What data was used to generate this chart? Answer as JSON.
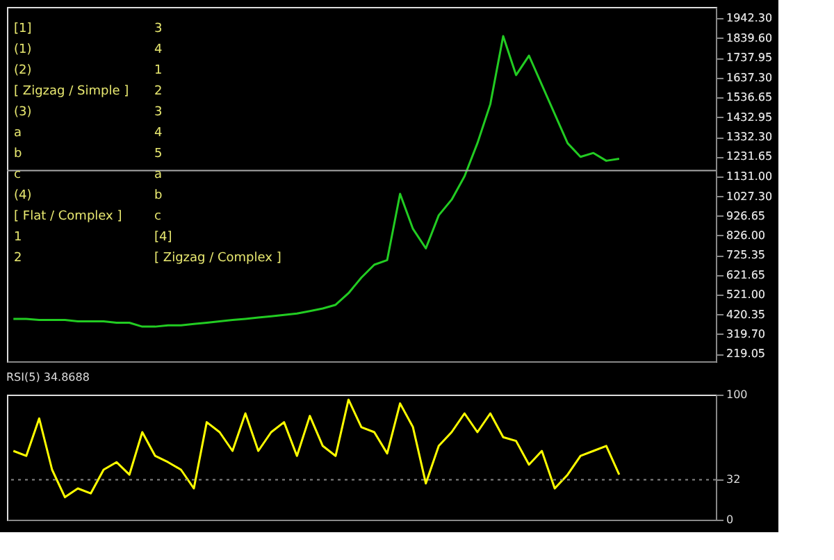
{
  "chart_data": [
    {
      "type": "line",
      "categories": [
        null,
        null,
        null,
        null,
        null,
        null,
        null,
        null,
        null,
        null,
        null,
        null,
        null,
        null,
        null,
        null,
        null,
        null,
        null,
        null,
        null,
        null,
        null,
        null,
        null,
        null,
        null,
        null,
        null,
        null,
        null,
        null,
        null,
        null,
        null,
        null,
        null,
        null,
        null,
        null,
        null,
        null,
        null,
        null,
        null,
        null,
        null,
        null,
        null,
        null,
        null,
        null,
        null,
        null,
        null
      ],
      "series": [
        {
          "color": "#22cc22",
          "values": [
            398,
            398,
            392,
            392,
            392,
            385,
            385,
            385,
            378,
            378,
            358,
            358,
            365,
            365,
            372,
            378,
            385,
            392,
            398,
            405,
            411,
            418,
            425,
            438,
            451,
            470,
            530,
            610,
            676,
            700,
            1040,
            860,
            760,
            930,
            1010,
            1130,
            1300,
            1500,
            1850,
            1650,
            1750,
            1600,
            1450,
            1300,
            1230,
            1250,
            1210,
            1220,
            null,
            null,
            null,
            null,
            null,
            null,
            null
          ]
        }
      ],
      "ylim": [
        180,
        2000
      ],
      "yticks": [
        {
          "value": 219.05,
          "label": "219.05"
        },
        {
          "value": 319.7,
          "label": "319.70"
        },
        {
          "value": 420.35,
          "label": "420.35"
        },
        {
          "value": 521,
          "label": "521.00"
        },
        {
          "value": 621.65,
          "label": "621.65"
        },
        {
          "value": 725.35,
          "label": "725.35"
        },
        {
          "value": 826,
          "label": "826.00"
        },
        {
          "value": 926.65,
          "label": "926.65"
        },
        {
          "value": 1027.3,
          "label": "1027.30"
        },
        {
          "value": 1131,
          "label": "1131.00"
        },
        {
          "value": 1231.65,
          "label": "1231.65"
        },
        {
          "value": 1332.3,
          "label": "1332.30"
        },
        {
          "value": 1432.95,
          "label": "1432.95"
        },
        {
          "value": 1536.65,
          "label": "1536.65"
        },
        {
          "value": 1637.3,
          "label": "1637.30"
        },
        {
          "value": 1737.95,
          "label": "1737.95"
        },
        {
          "value": 1839.6,
          "label": "1839.60"
        },
        {
          "value": 1942.3,
          "label": "1942.30"
        }
      ],
      "tick_labels": "y",
      "grid": false,
      "ref_lines": [
        {
          "axis": "y",
          "value": 1160,
          "color": "#aaaaaa"
        }
      ],
      "annotations": [
        "[1]",
        "(1)",
        "(2)",
        "[ Zigzag / Simple ]",
        "(3)",
        "a",
        "b",
        "c",
        "(4)",
        "[ Flat / Complex ]",
        "1",
        "2",
        "3",
        "4",
        "1",
        "2",
        "3",
        "4",
        "5",
        "a",
        "b",
        "c",
        "[4]",
        "[ Zigzag / Complex ]"
      ]
    },
    {
      "type": "line",
      "title": "RSI(5) 34.8688",
      "categories": [
        null,
        null,
        null,
        null,
        null,
        null,
        null,
        null,
        null,
        null,
        null,
        null,
        null,
        null,
        null,
        null,
        null,
        null,
        null,
        null,
        null,
        null,
        null,
        null,
        null,
        null,
        null,
        null,
        null,
        null,
        null,
        null,
        null,
        null,
        null,
        null,
        null,
        null,
        null,
        null,
        null,
        null,
        null,
        null,
        null,
        null,
        null,
        null,
        null,
        null,
        null,
        null,
        null,
        null,
        null
      ],
      "series": [
        {
          "color": "#ffff00",
          "values": [
            55,
            51,
            81,
            40,
            18,
            25,
            21,
            40,
            46,
            36,
            70,
            51,
            46,
            40,
            25,
            78,
            70,
            55,
            85,
            55,
            70,
            78,
            51,
            83,
            59,
            51,
            96,
            74,
            70,
            53,
            93,
            74,
            29,
            59,
            70,
            85,
            70,
            85,
            66,
            63,
            44,
            55,
            25,
            36,
            51,
            55,
            59,
            36,
            null,
            null,
            null,
            null,
            null,
            null,
            null
          ]
        }
      ],
      "ylim": [
        0,
        100
      ],
      "yticks": [
        0,
        32,
        100
      ],
      "tick_labels": "y",
      "ref_lines": [
        {
          "axis": "y",
          "value": 32,
          "color": "#888888",
          "line_style": "dotted"
        }
      ]
    }
  ]
}
